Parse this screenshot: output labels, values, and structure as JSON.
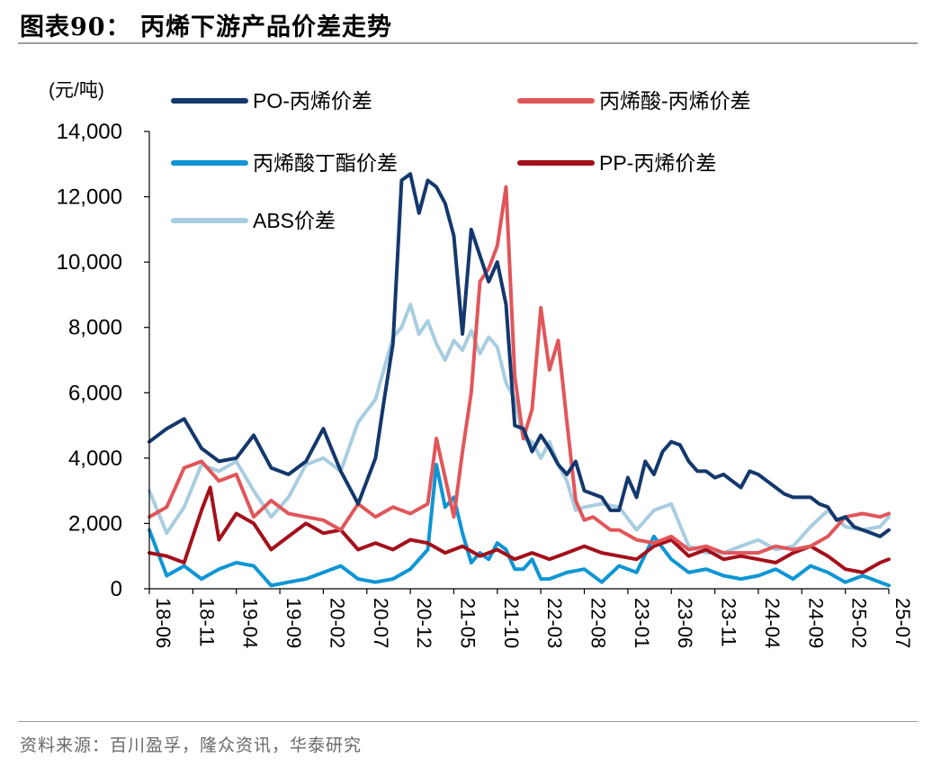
{
  "header": {
    "title": "图表90：  丙烯下游产品价差走势"
  },
  "footer": {
    "source": "资料来源：百川盈孚，隆众资讯，华泰研究"
  },
  "chart_data": {
    "type": "line",
    "title": "",
    "ylabel": "(元/吨)",
    "xlabel": "",
    "ylim": [
      0,
      14000
    ],
    "yticks": [
      0,
      2000,
      4000,
      6000,
      8000,
      10000,
      12000,
      14000
    ],
    "ytick_labels": [
      "0",
      "2,000",
      "4,000",
      "6,000",
      "8,000",
      "10,000",
      "12,000",
      "14,000"
    ],
    "xlim": [
      "2018-06",
      "2025-07"
    ],
    "xticks": [
      "18-06",
      "18-11",
      "19-04",
      "19-09",
      "20-02",
      "20-07",
      "20-12",
      "21-05",
      "21-10",
      "22-03",
      "22-08",
      "23-01",
      "23-06",
      "23-11",
      "24-04",
      "24-09",
      "25-02",
      "25-07"
    ],
    "legend": "top",
    "series": [
      {
        "name": "PO-丙烯价差",
        "color": "#14386d",
        "x": [
          "2018-06",
          "2018-08",
          "2018-10",
          "2018-12",
          "2019-02",
          "2019-04",
          "2019-06",
          "2019-08",
          "2019-10",
          "2019-12",
          "2020-02",
          "2020-04",
          "2020-06",
          "2020-08",
          "2020-09",
          "2020-10",
          "2020-11",
          "2020-12",
          "2021-01",
          "2021-02",
          "2021-03",
          "2021-04",
          "2021-05",
          "2021-06",
          "2021-07",
          "2021-08",
          "2021-09",
          "2021-10",
          "2021-11",
          "2021-12",
          "2022-01",
          "2022-02",
          "2022-03",
          "2022-04",
          "2022-05",
          "2022-06",
          "2022-07",
          "2022-08",
          "2022-09",
          "2022-10",
          "2022-11",
          "2022-12",
          "2023-01",
          "2023-02",
          "2023-03",
          "2023-04",
          "2023-05",
          "2023-06",
          "2023-07",
          "2023-08",
          "2023-09",
          "2023-10",
          "2023-11",
          "2023-12",
          "2024-01",
          "2024-02",
          "2024-03",
          "2024-04",
          "2024-05",
          "2024-06",
          "2024-07",
          "2024-08",
          "2024-09",
          "2024-10",
          "2024-11",
          "2024-12",
          "2025-01",
          "2025-02",
          "2025-03",
          "2025-04",
          "2025-05",
          "2025-06",
          "2025-07"
        ],
        "y": [
          4500,
          4900,
          5200,
          4300,
          3900,
          4000,
          4700,
          3700,
          3500,
          3900,
          4900,
          3600,
          2600,
          4000,
          5800,
          7500,
          12500,
          12700,
          11500,
          12500,
          12300,
          11800,
          10800,
          7800,
          11000,
          10200,
          9400,
          10000,
          8700,
          5000,
          4900,
          4200,
          4700,
          4300,
          3800,
          3500,
          3900,
          3000,
          2900,
          2800,
          2400,
          2400,
          3400,
          2800,
          3900,
          3500,
          4200,
          4500,
          4400,
          3900,
          3600,
          3600,
          3400,
          3500,
          3300,
          3100,
          3600,
          3500,
          3300,
          3100,
          2900,
          2800,
          2800,
          2800,
          2600,
          2500,
          2100,
          2200,
          1900,
          1800,
          1700,
          1600,
          1800
        ]
      },
      {
        "name": "丙烯酸-丙烯价差",
        "color": "#e0565a",
        "x": [
          "2018-06",
          "2018-08",
          "2018-10",
          "2018-12",
          "2019-02",
          "2019-04",
          "2019-06",
          "2019-08",
          "2019-10",
          "2019-12",
          "2020-02",
          "2020-04",
          "2020-06",
          "2020-08",
          "2020-10",
          "2020-12",
          "2021-02",
          "2021-03",
          "2021-04",
          "2021-05",
          "2021-06",
          "2021-07",
          "2021-08",
          "2021-09",
          "2021-10",
          "2021-11",
          "2021-12",
          "2022-01",
          "2022-02",
          "2022-03",
          "2022-04",
          "2022-05",
          "2022-06",
          "2022-07",
          "2022-08",
          "2022-09",
          "2022-10",
          "2022-11",
          "2022-12",
          "2023-02",
          "2023-04",
          "2023-06",
          "2023-08",
          "2023-10",
          "2023-12",
          "2024-02",
          "2024-04",
          "2024-06",
          "2024-08",
          "2024-10",
          "2024-12",
          "2025-02",
          "2025-04",
          "2025-06",
          "2025-07"
        ],
        "y": [
          2200,
          2500,
          3700,
          3900,
          3300,
          3500,
          2200,
          2700,
          2300,
          2200,
          2100,
          1800,
          2600,
          2200,
          2500,
          2300,
          2600,
          4600,
          3400,
          2200,
          4200,
          6000,
          9400,
          9800,
          10500,
          12300,
          6500,
          4600,
          5500,
          8600,
          6700,
          7600,
          5100,
          2700,
          2100,
          2200,
          2000,
          1800,
          1800,
          1500,
          1400,
          1600,
          1200,
          1300,
          1100,
          1100,
          1100,
          1300,
          1200,
          1300,
          1600,
          2200,
          2300,
          2200,
          2300
        ]
      },
      {
        "name": "丙烯酸丁酯价差",
        "color": "#0e95d4",
        "x": [
          "2018-06",
          "2018-08",
          "2018-10",
          "2018-12",
          "2019-02",
          "2019-04",
          "2019-06",
          "2019-08",
          "2019-10",
          "2019-12",
          "2020-02",
          "2020-04",
          "2020-06",
          "2020-08",
          "2020-10",
          "2020-12",
          "2021-02",
          "2021-03",
          "2021-04",
          "2021-05",
          "2021-06",
          "2021-07",
          "2021-08",
          "2021-09",
          "2021-10",
          "2021-11",
          "2021-12",
          "2022-01",
          "2022-02",
          "2022-03",
          "2022-04",
          "2022-06",
          "2022-08",
          "2022-10",
          "2022-12",
          "2023-02",
          "2023-04",
          "2023-06",
          "2023-08",
          "2023-10",
          "2023-12",
          "2024-02",
          "2024-04",
          "2024-06",
          "2024-08",
          "2024-10",
          "2024-12",
          "2025-02",
          "2025-04",
          "2025-06",
          "2025-07"
        ],
        "y": [
          1800,
          400,
          700,
          300,
          600,
          800,
          700,
          100,
          200,
          300,
          500,
          700,
          300,
          200,
          300,
          600,
          1200,
          3800,
          2500,
          2800,
          1700,
          800,
          1100,
          900,
          1400,
          1200,
          600,
          600,
          900,
          300,
          300,
          500,
          600,
          200,
          700,
          500,
          1600,
          900,
          500,
          600,
          400,
          300,
          400,
          600,
          300,
          700,
          500,
          200,
          400,
          200,
          100
        ]
      },
      {
        "name": "PP-丙烯价差",
        "color": "#a3101b",
        "x": [
          "2018-06",
          "2018-08",
          "2018-10",
          "2018-12",
          "2019-01",
          "2019-02",
          "2019-04",
          "2019-06",
          "2019-08",
          "2019-10",
          "2019-12",
          "2020-02",
          "2020-04",
          "2020-06",
          "2020-08",
          "2020-10",
          "2020-12",
          "2021-02",
          "2021-04",
          "2021-06",
          "2021-08",
          "2021-10",
          "2021-12",
          "2022-02",
          "2022-04",
          "2022-06",
          "2022-08",
          "2022-10",
          "2022-12",
          "2023-02",
          "2023-04",
          "2023-06",
          "2023-08",
          "2023-10",
          "2023-12",
          "2024-02",
          "2024-04",
          "2024-06",
          "2024-08",
          "2024-10",
          "2024-12",
          "2025-02",
          "2025-04",
          "2025-06",
          "2025-07"
        ],
        "y": [
          1100,
          1000,
          800,
          2400,
          3100,
          1500,
          2300,
          2000,
          1200,
          1600,
          2000,
          1700,
          1800,
          1200,
          1400,
          1200,
          1500,
          1400,
          1100,
          1300,
          1000,
          1200,
          900,
          1100,
          900,
          1100,
          1300,
          1100,
          1000,
          900,
          1300,
          1500,
          1000,
          1200,
          900,
          1000,
          900,
          800,
          1100,
          1300,
          1000,
          600,
          500,
          800,
          900
        ]
      },
      {
        "name": "ABS价差",
        "color": "#a8cde0",
        "x": [
          "2018-06",
          "2018-08",
          "2018-10",
          "2018-12",
          "2019-02",
          "2019-04",
          "2019-06",
          "2019-08",
          "2019-10",
          "2019-12",
          "2020-02",
          "2020-04",
          "2020-06",
          "2020-08",
          "2020-10",
          "2020-11",
          "2020-12",
          "2021-01",
          "2021-02",
          "2021-03",
          "2021-04",
          "2021-05",
          "2021-06",
          "2021-07",
          "2021-08",
          "2021-09",
          "2021-10",
          "2021-11",
          "2021-12",
          "2022-01",
          "2022-02",
          "2022-03",
          "2022-04",
          "2022-05",
          "2022-06",
          "2022-07",
          "2022-08",
          "2022-10",
          "2022-12",
          "2023-02",
          "2023-04",
          "2023-06",
          "2023-08",
          "2023-10",
          "2023-12",
          "2024-02",
          "2024-04",
          "2024-06",
          "2024-08",
          "2024-10",
          "2024-12",
          "2025-02",
          "2025-04",
          "2025-06",
          "2025-07"
        ],
        "y": [
          3000,
          1700,
          2500,
          3800,
          3600,
          3900,
          3000,
          2200,
          2800,
          3800,
          4000,
          3600,
          5100,
          5800,
          7700,
          8000,
          8700,
          7800,
          8200,
          7500,
          7000,
          7600,
          7300,
          7900,
          7200,
          7700,
          7400,
          6300,
          5800,
          4600,
          4500,
          4000,
          4500,
          3800,
          3300,
          2400,
          2500,
          2600,
          2500,
          1800,
          2400,
          2600,
          1300,
          1100,
          1100,
          1300,
          1500,
          1200,
          1300,
          1900,
          2400,
          1900,
          1800,
          1900,
          2200
        ]
      }
    ]
  }
}
